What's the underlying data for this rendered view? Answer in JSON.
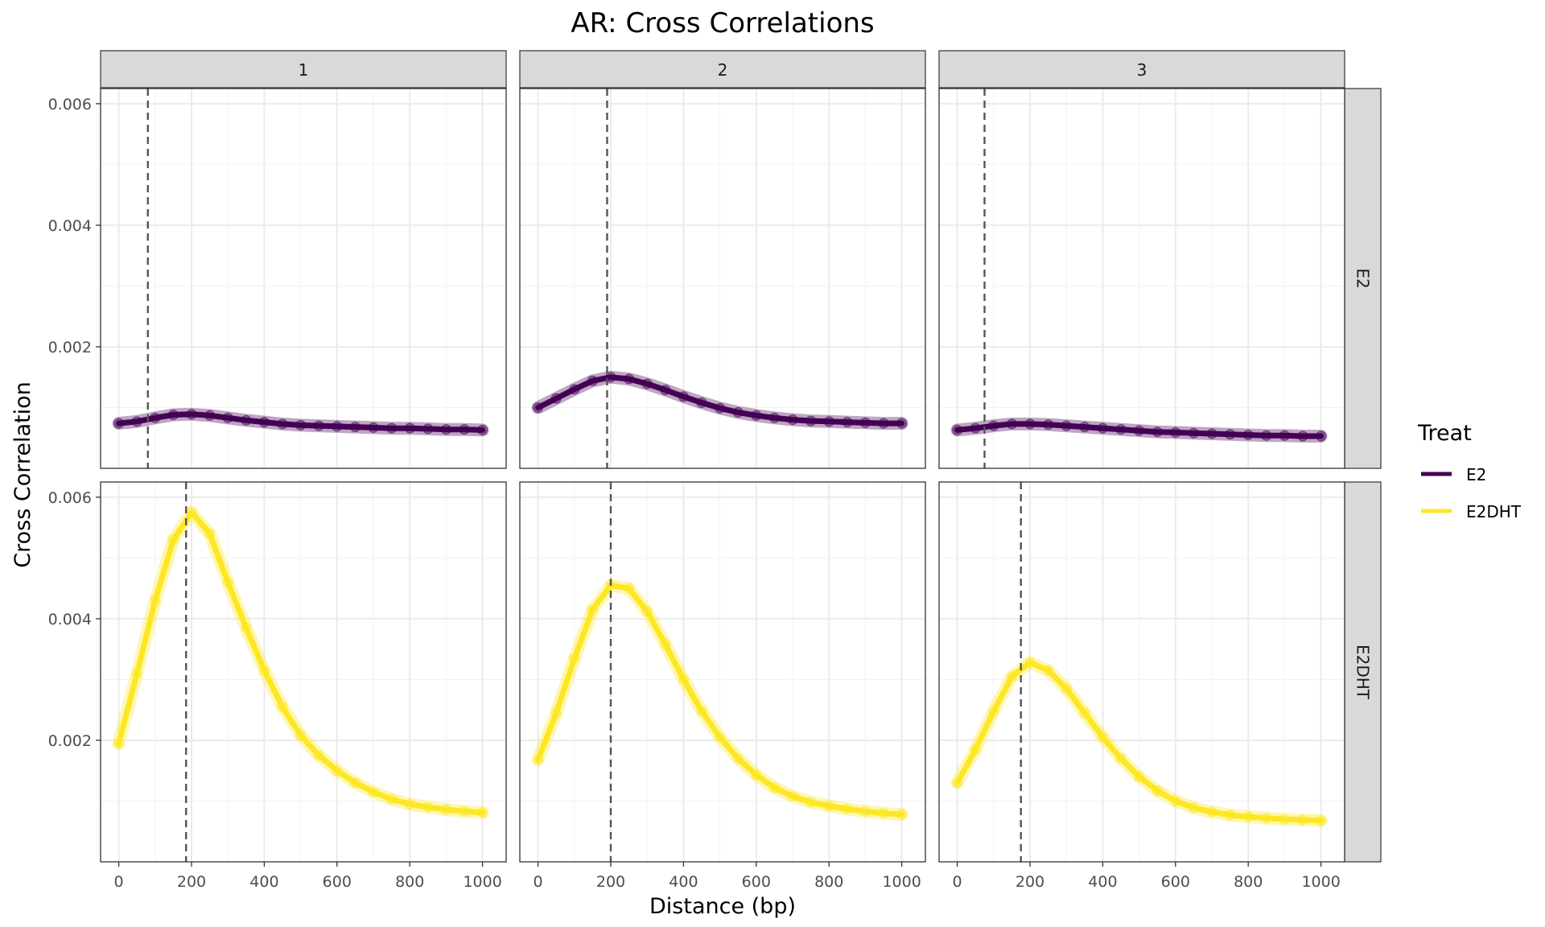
{
  "chart_data": {
    "type": "line",
    "title": "AR: Cross Correlations",
    "xlabel": "Distance (bp)",
    "ylabel": "Cross Correlation",
    "xlim": [
      -50,
      1065
    ],
    "ylim": [
      0,
      0.00625
    ],
    "x_ticks": [
      0,
      200,
      400,
      600,
      800,
      1000
    ],
    "x_tick_labels": [
      "0",
      "200",
      "400",
      "600",
      "800",
      "1000"
    ],
    "y_ticks": [
      0.002,
      0.004,
      0.006
    ],
    "y_tick_labels": [
      "0.002",
      "0.004",
      "0.006"
    ],
    "grid": true,
    "facet_cols": [
      "1",
      "2",
      "3"
    ],
    "facet_rows": [
      "E2",
      "E2DHT"
    ],
    "legend": {
      "title": "Treat",
      "position": "right",
      "entries": [
        {
          "label": "E2",
          "color": "#440154"
        },
        {
          "label": "E2DHT",
          "color": "#fde725"
        }
      ]
    },
    "x": [
      0,
      50,
      100,
      150,
      200,
      250,
      300,
      350,
      400,
      450,
      500,
      550,
      600,
      650,
      700,
      750,
      800,
      850,
      900,
      950,
      1000
    ],
    "panels": [
      {
        "row": "E2",
        "col": "1",
        "vline": 80,
        "color": "#440154",
        "values": [
          0.00074,
          0.00077,
          0.00083,
          0.00088,
          0.00089,
          0.00087,
          0.00083,
          0.00079,
          0.00076,
          0.00073,
          0.00071,
          0.0007,
          0.00069,
          0.00068,
          0.00067,
          0.00066,
          0.00066,
          0.00065,
          0.00064,
          0.00064,
          0.00063
        ]
      },
      {
        "row": "E2",
        "col": "2",
        "vline": 190,
        "color": "#440154",
        "values": [
          0.001,
          0.00115,
          0.0013,
          0.00144,
          0.0015,
          0.00147,
          0.00139,
          0.00129,
          0.00118,
          0.00108,
          0.00099,
          0.00092,
          0.00087,
          0.00083,
          0.0008,
          0.00078,
          0.00077,
          0.00076,
          0.00075,
          0.00074,
          0.00074
        ]
      },
      {
        "row": "E2",
        "col": "3",
        "vline": 75,
        "color": "#440154",
        "values": [
          0.00063,
          0.00066,
          0.0007,
          0.00073,
          0.00073,
          0.00072,
          0.0007,
          0.00068,
          0.00066,
          0.00064,
          0.00062,
          0.0006,
          0.00059,
          0.00058,
          0.00057,
          0.00056,
          0.00055,
          0.00054,
          0.00054,
          0.00053,
          0.00053
        ]
      },
      {
        "row": "E2DHT",
        "col": "1",
        "vline": 185,
        "color": "#fde725",
        "values": [
          0.00195,
          0.0031,
          0.0043,
          0.0053,
          0.00575,
          0.0054,
          0.0046,
          0.00385,
          0.00315,
          0.00255,
          0.00208,
          0.00175,
          0.0015,
          0.0013,
          0.00115,
          0.00103,
          0.00095,
          0.0009,
          0.00086,
          0.00083,
          0.00081
        ]
      },
      {
        "row": "E2DHT",
        "col": "2",
        "vline": 200,
        "color": "#fde725",
        "values": [
          0.00168,
          0.00245,
          0.00335,
          0.00415,
          0.00455,
          0.0045,
          0.00412,
          0.00358,
          0.003,
          0.00248,
          0.00205,
          0.0017,
          0.00143,
          0.00122,
          0.00108,
          0.00098,
          0.00092,
          0.00087,
          0.00083,
          0.0008,
          0.00078
        ]
      },
      {
        "row": "E2DHT",
        "col": "3",
        "vline": 175,
        "color": "#fde725",
        "values": [
          0.0013,
          0.00185,
          0.00248,
          0.00305,
          0.00328,
          0.00315,
          0.00285,
          0.00245,
          0.00205,
          0.0017,
          0.0014,
          0.00117,
          0.001,
          0.00089,
          0.00082,
          0.00077,
          0.00074,
          0.00072,
          0.0007,
          0.00069,
          0.00068
        ]
      }
    ]
  }
}
